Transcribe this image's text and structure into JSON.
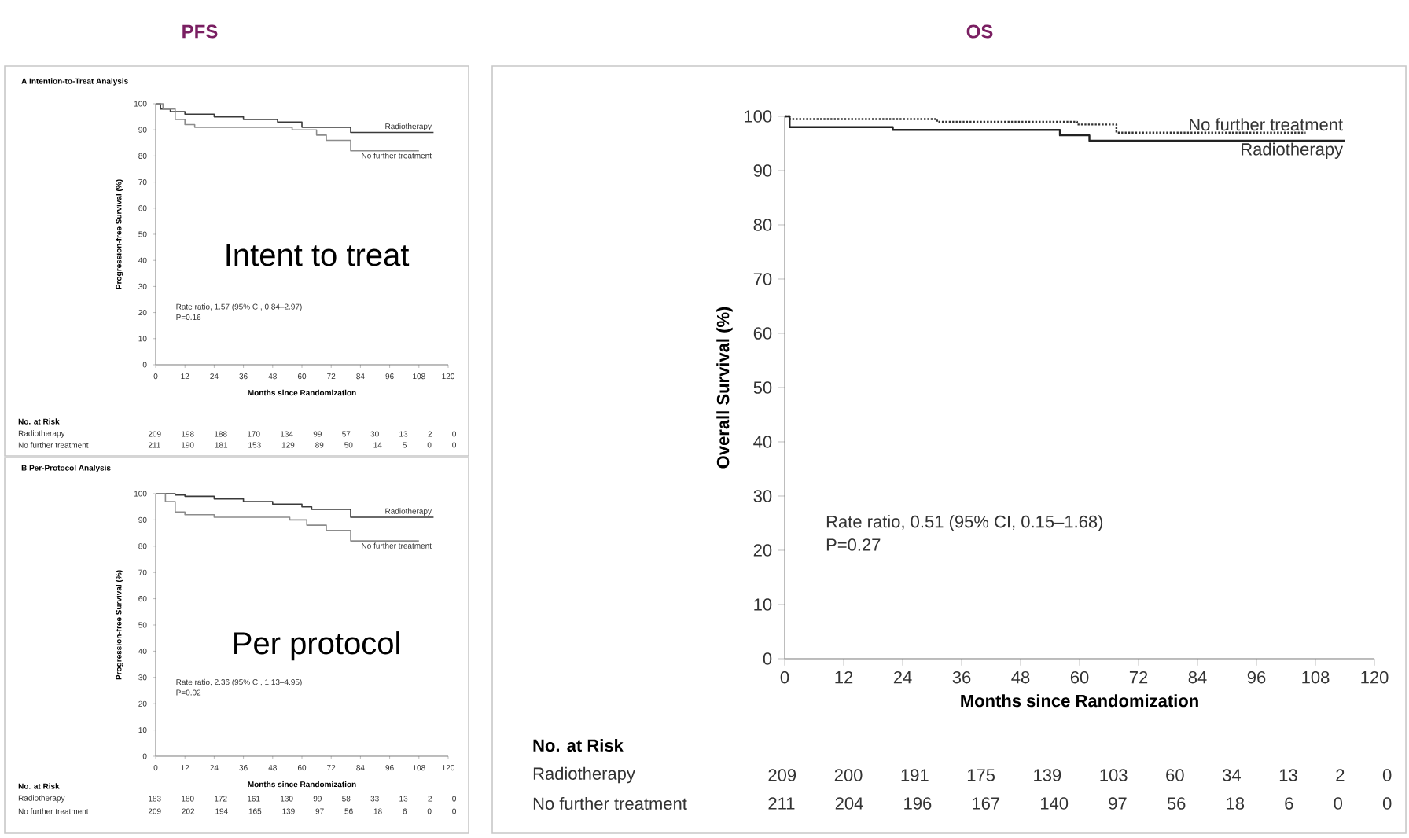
{
  "chart_data": [
    {
      "type": "step",
      "title": "PFS",
      "subtitle": "A Intention-to-Treat Analysis",
      "xlabel": "Months since Randomization",
      "ylabel": "Progression-free Survival (%)",
      "xlim": [
        0,
        120
      ],
      "xticks": [
        0,
        12,
        24,
        36,
        48,
        60,
        72,
        84,
        96,
        108,
        120
      ],
      "ylim": [
        0,
        100
      ],
      "yticks": [
        0,
        10,
        20,
        30,
        40,
        50,
        60,
        70,
        80,
        90,
        100
      ],
      "series": [
        {
          "name": "Radiotherapy",
          "color": "#3a3a3a",
          "x": [
            0,
            2,
            6,
            12,
            24,
            36,
            50,
            60,
            80,
            114
          ],
          "values": [
            100,
            98,
            97,
            96,
            95,
            94,
            93,
            91,
            89,
            89
          ]
        },
        {
          "name": "No further treatment",
          "color": "#8c8c8c",
          "x": [
            0,
            3,
            8,
            12,
            16,
            56,
            66,
            70,
            80,
            108
          ],
          "values": [
            100,
            98,
            94,
            92,
            91,
            90,
            88,
            86,
            82,
            82
          ]
        }
      ],
      "annotations": [
        "Rate ratio, 1.57 (95% CI, 0.84–2.97)",
        "P=0.16",
        "Intent to treat",
        "No. at Risk",
        "Radiotherapy",
        "209 198 188 170 134 99 57 30 13 2 0",
        "No further treatment",
        "211 190 181 153 129 89 50 14 5 0 0"
      ]
    },
    {
      "type": "step",
      "title": "B Per-Protocol Analysis",
      "xlabel": "Months since Randomization",
      "ylabel": "Progression-free Survival (%)",
      "xlim": [
        0,
        120
      ],
      "xticks": [
        0,
        12,
        24,
        36,
        48,
        60,
        72,
        84,
        96,
        108,
        120
      ],
      "ylim": [
        0,
        100
      ],
      "yticks": [
        0,
        10,
        20,
        30,
        40,
        50,
        60,
        70,
        80,
        90,
        100
      ],
      "series": [
        {
          "name": "Radiotherapy",
          "color": "#3a3a3a",
          "x": [
            0,
            8,
            12,
            24,
            36,
            48,
            60,
            64,
            80,
            114
          ],
          "values": [
            100,
            99.5,
            99,
            98,
            97,
            96,
            95,
            94,
            91,
            91
          ]
        },
        {
          "name": "No further treatment",
          "color": "#8c8c8c",
          "x": [
            0,
            4,
            8,
            12,
            24,
            55,
            62,
            70,
            80,
            108
          ],
          "values": [
            100,
            97,
            93,
            92,
            91,
            90,
            88,
            86,
            82,
            82
          ]
        }
      ],
      "annotations": [
        "Rate ratio, 2.36 (95% CI, 1.13–4.95)",
        "P=0.02",
        "Per protocol",
        "No. at Risk",
        "Radiotherapy",
        "183 180 172 161 130 99 58 33 13 2 0",
        "No further treatment",
        "209 202 194 165 139 97 56 18 6 0 0"
      ]
    },
    {
      "type": "step",
      "title": "OS",
      "xlabel": "Months since Randomization",
      "ylabel": "Overall Survival (%)",
      "xlim": [
        0,
        120
      ],
      "xticks": [
        0,
        12,
        24,
        36,
        48,
        60,
        72,
        84,
        96,
        108,
        120
      ],
      "ylim": [
        0,
        100
      ],
      "yticks": [
        0,
        10,
        20,
        30,
        40,
        50,
        60,
        70,
        80,
        90,
        100
      ],
      "series": [
        {
          "name": "No further treatment",
          "color": "#333333",
          "line_style": "dotted",
          "x": [
            0,
            1,
            31,
            59.5,
            67.5,
            106
          ],
          "values": [
            100,
            99.5,
            99,
            98.5,
            97,
            97
          ]
        },
        {
          "name": "Radiotherapy",
          "color": "#222222",
          "x": [
            0,
            1,
            22,
            56,
            62,
            114
          ],
          "values": [
            100,
            98,
            97.5,
            96.5,
            95.5,
            95.5
          ]
        }
      ],
      "annotations": [
        "Rate ratio, 0.51 (95% CI, 0.15–1.68)",
        "P=0.27",
        "No. at Risk",
        "Radiotherapy",
        "209 200 191 175 139 103 60 34 13 2 0",
        "No further treatment",
        "211 204 196 167 140 97 56 18 6 0 0"
      ]
    }
  ]
}
